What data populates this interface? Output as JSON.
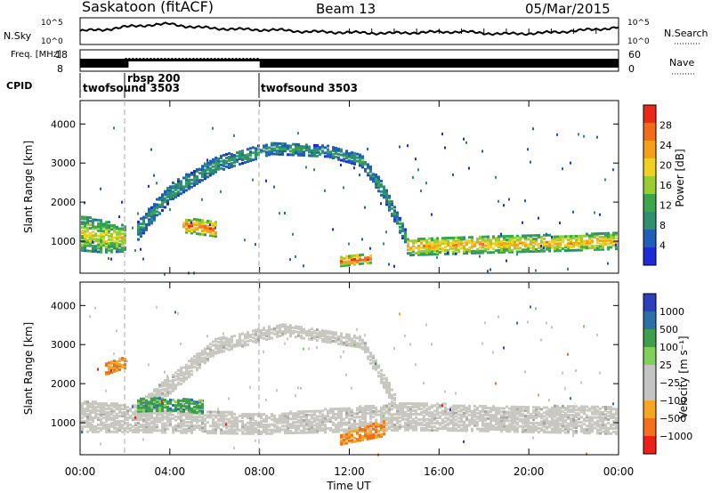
{
  "header": {
    "site_title": "Saskatoon (fitACF)",
    "beam_label": "Beam 13",
    "date_label": "05/Mar/2015"
  },
  "colors": {
    "power_scale": [
      "#1d2bd6",
      "#1f5fb8",
      "#2f8f6f",
      "#3aa84a",
      "#9acd32",
      "#f0d020",
      "#f6a019",
      "#f26a1b",
      "#ea2a18"
    ],
    "velocity_scale": [
      "#ee1f16",
      "#f2701c",
      "#f5a623",
      "#c4c4c4",
      "#c4c4c4",
      "#7fd15a",
      "#3d9f4b",
      "#2f6fa8",
      "#2b3fbf"
    ],
    "ground_scatter": "#c8c8c0"
  },
  "chart_data": [
    {
      "type": "line",
      "panel": "noise",
      "left_axis": {
        "label": "N.Sky",
        "ticks": [
          "10^5",
          "10^0"
        ]
      },
      "right_axis": {
        "label": "N.Search",
        "ticks": [
          "10^5",
          "10^0"
        ]
      },
      "x": {
        "ticks": [
          "00:00",
          "04:00",
          "08:00",
          "12:00",
          "16:00",
          "20:00",
          "00:00"
        ],
        "range_hours": [
          0,
          24
        ]
      },
      "series": [
        {
          "style": "solid",
          "hours": [
            0,
            1,
            2,
            3,
            4,
            5,
            6,
            7,
            8,
            9,
            10,
            11,
            12,
            13,
            14,
            15,
            16,
            17,
            18,
            19,
            20,
            21,
            22,
            23,
            24
          ],
          "log_level": [
            0.55,
            0.6,
            0.72,
            0.8,
            0.85,
            0.72,
            0.66,
            0.62,
            0.6,
            0.58,
            0.52,
            0.5,
            0.48,
            0.46,
            0.45,
            0.48,
            0.5,
            0.52,
            0.45,
            0.42,
            0.44,
            0.48,
            0.55,
            0.62,
            0.7
          ]
        }
      ]
    },
    {
      "type": "line",
      "panel": "frequency",
      "left_axis": {
        "label": "Freq. [MHz]",
        "ticks": [
          "18",
          "8"
        ]
      },
      "right_axis": {
        "label": "Nave",
        "ticks": [
          "60",
          "0"
        ]
      },
      "series": [
        {
          "style": "solid-band",
          "segments_hours": [
            [
              0,
              2
            ],
            [
              8,
              24
            ]
          ]
        },
        {
          "style": "dotted",
          "segments_hours": [
            [
              2,
              8
            ]
          ]
        }
      ]
    },
    {
      "type": "table",
      "panel": "cpid",
      "label": "CPID",
      "segments": [
        {
          "start_hour": 0,
          "text": "twofsound 3503"
        },
        {
          "start_hour": 2,
          "text": "rbsp 200"
        },
        {
          "start_hour": 8,
          "text": "twofsound 3503"
        }
      ]
    },
    {
      "type": "heatmap",
      "panel": "power",
      "ylabel": "Slant Range [km]",
      "yticks": [
        1000,
        2000,
        3000,
        4000
      ],
      "ylim": [
        180,
        4600
      ],
      "colorbar": {
        "label": "Power [dB]",
        "ticks": [
          4,
          8,
          12,
          16,
          20,
          24,
          28
        ],
        "range": [
          0,
          30
        ]
      },
      "regions": [
        {
          "name": "main band",
          "path": [
            [
              0,
              1250,
              900
            ],
            [
              1,
              1150,
              800
            ],
            [
              2,
              1100,
              650
            ]
          ],
          "value": 18
        },
        {
          "name": "rising arc",
          "path": [
            [
              2.5,
              1300,
              500
            ],
            [
              4,
              2300,
              420
            ],
            [
              6,
              3000,
              380
            ],
            [
              8.5,
              3420,
              300
            ],
            [
              11,
              3350,
              300
            ],
            [
              12.5,
              3100,
              280
            ],
            [
              13.5,
              2300,
              400
            ],
            [
              14.5,
              1100,
              400
            ]
          ],
          "value": 10
        },
        {
          "name": "morning patch",
          "path": [
            [
              4.5,
              1450,
              350
            ],
            [
              6,
              1350,
              380
            ]
          ],
          "value": 26
        },
        {
          "name": "noon echo",
          "path": [
            [
              11.5,
              520,
              250
            ],
            [
              13,
              600,
              220
            ]
          ],
          "value": 28
        },
        {
          "name": "evening band",
          "path": [
            [
              14.5,
              900,
              450
            ],
            [
              18,
              950,
              420
            ],
            [
              22,
              1000,
              400
            ],
            [
              24,
              1050,
              420
            ]
          ],
          "value": 22
        }
      ]
    },
    {
      "type": "heatmap",
      "panel": "velocity",
      "ylabel": "Slant Range [km]",
      "yticks": [
        1000,
        2000,
        3000,
        4000
      ],
      "ylim": [
        180,
        4600
      ],
      "xlabel": "Time UT",
      "colorbar": {
        "label": "Velocity [m s⁻¹]",
        "ticks": [
          -1000,
          -500,
          -100,
          -25,
          25,
          100,
          500,
          1000
        ],
        "tick_labels": [
          "−1000",
          "−500",
          "−100",
          "−25",
          "25",
          "100",
          "500",
          "1000"
        ]
      },
      "regions": [
        {
          "name": "ground band",
          "path": [
            [
              0,
              1200,
              800
            ],
            [
              2,
              1150,
              700
            ],
            [
              8,
              1000,
              500
            ],
            [
              14.5,
              1200,
              700
            ],
            [
              18,
              1150,
              650
            ],
            [
              24,
              1100,
              700
            ]
          ],
          "value": 0
        },
        {
          "name": "arc",
          "path": [
            [
              2.5,
              1300,
              500
            ],
            [
              6,
              3000,
              380
            ],
            [
              9,
              3430,
              300
            ],
            [
              12.5,
              3100,
              280
            ],
            [
              14,
              1600,
              400
            ]
          ],
          "value": 0
        },
        {
          "name": "green patch",
          "path": [
            [
              2.5,
              1500,
              350
            ],
            [
              4,
              1500,
              300
            ],
            [
              5.5,
              1450,
              350
            ]
          ],
          "value": 300
        },
        {
          "name": "orange noon",
          "path": [
            [
              11.5,
              600,
              250
            ],
            [
              13.5,
              900,
              400
            ]
          ],
          "value": -300
        },
        {
          "name": "early orange",
          "path": [
            [
              1,
              2400,
              300
            ],
            [
              2,
              2600,
              300
            ]
          ],
          "value": -200
        }
      ]
    }
  ]
}
